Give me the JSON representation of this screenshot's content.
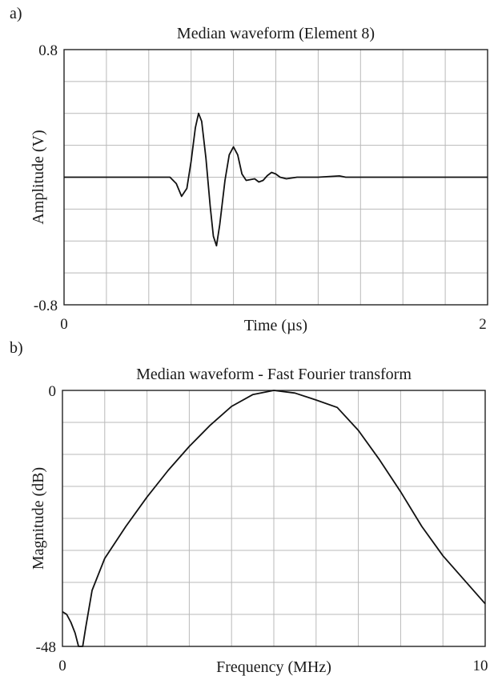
{
  "chart_data": [
    {
      "panel_label": "a)",
      "type": "line",
      "title": "Median waveform (Element 8)",
      "xlabel": "Time (µs)",
      "ylabel": "Amplitude (V)",
      "xlim": [
        0,
        2
      ],
      "ylim": [
        -0.8,
        0.8
      ],
      "x_ticks": [
        "0",
        "2"
      ],
      "y_ticks": [
        "0.8",
        "-0.8"
      ],
      "grid": true,
      "grid_divisions": {
        "x": 10,
        "y": 8
      },
      "series": [
        {
          "color": "#111111",
          "points": [
            [
              0.0,
              0.0
            ],
            [
              0.45,
              0.0
            ],
            [
              0.5,
              0.0
            ],
            [
              0.53,
              -0.04
            ],
            [
              0.555,
              -0.12
            ],
            [
              0.58,
              -0.07
            ],
            [
              0.6,
              0.1
            ],
            [
              0.62,
              0.31
            ],
            [
              0.635,
              0.4
            ],
            [
              0.65,
              0.35
            ],
            [
              0.67,
              0.12
            ],
            [
              0.69,
              -0.18
            ],
            [
              0.705,
              -0.37
            ],
            [
              0.72,
              -0.43
            ],
            [
              0.735,
              -0.3
            ],
            [
              0.76,
              -0.02
            ],
            [
              0.78,
              0.14
            ],
            [
              0.8,
              0.19
            ],
            [
              0.82,
              0.14
            ],
            [
              0.84,
              0.02
            ],
            [
              0.86,
              -0.02
            ],
            [
              0.88,
              -0.015
            ],
            [
              0.9,
              -0.01
            ],
            [
              0.92,
              -0.03
            ],
            [
              0.94,
              -0.02
            ],
            [
              0.96,
              0.01
            ],
            [
              0.98,
              0.03
            ],
            [
              1.0,
              0.02
            ],
            [
              1.02,
              0.0
            ],
            [
              1.05,
              -0.01
            ],
            [
              1.1,
              0.0
            ],
            [
              1.2,
              0.0
            ],
            [
              1.3,
              0.008
            ],
            [
              1.33,
              0.0
            ],
            [
              1.4,
              0.0
            ],
            [
              1.6,
              0.0
            ],
            [
              1.8,
              0.0
            ],
            [
              2.0,
              0.0
            ]
          ]
        }
      ]
    },
    {
      "panel_label": "b)",
      "type": "line",
      "title": "Median waveform - Fast Fourier transform",
      "xlabel": "Frequency (MHz)",
      "ylabel": "Magnitude (dB)",
      "xlim": [
        0,
        10
      ],
      "ylim": [
        -48,
        0
      ],
      "x_ticks": [
        "0",
        "10"
      ],
      "y_ticks": [
        "0",
        "-48"
      ],
      "grid": true,
      "grid_divisions": {
        "x": 10,
        "y": 8
      },
      "series": [
        {
          "color": "#111111",
          "points": [
            [
              0.0,
              -41.5
            ],
            [
              0.1,
              -42.0
            ],
            [
              0.2,
              -43.5
            ],
            [
              0.3,
              -45.5
            ],
            [
              0.38,
              -48
            ],
            [
              0.48,
              -48
            ],
            [
              0.55,
              -44.5
            ],
            [
              0.7,
              -37.5
            ],
            [
              1.0,
              -31.5
            ],
            [
              1.5,
              -25.5
            ],
            [
              2.0,
              -20.0
            ],
            [
              2.5,
              -15.0
            ],
            [
              3.0,
              -10.5
            ],
            [
              3.5,
              -6.5
            ],
            [
              4.0,
              -3.0
            ],
            [
              4.5,
              -0.8
            ],
            [
              5.0,
              0.0
            ],
            [
              5.5,
              -0.5
            ],
            [
              6.0,
              -1.8
            ],
            [
              6.5,
              -3.2
            ],
            [
              7.0,
              -7.5
            ],
            [
              7.5,
              -13.0
            ],
            [
              8.0,
              -19.0
            ],
            [
              8.5,
              -25.5
            ],
            [
              9.0,
              -31.0
            ],
            [
              9.5,
              -35.5
            ],
            [
              10.0,
              -40.0
            ]
          ]
        }
      ]
    }
  ]
}
